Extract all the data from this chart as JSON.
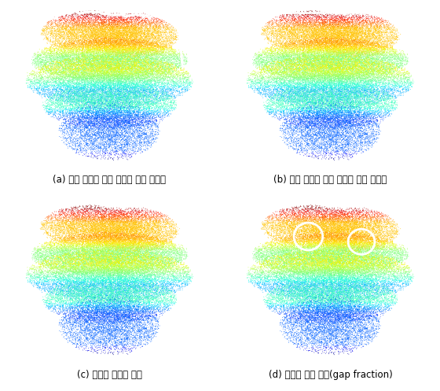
{
  "captions": [
    "(a) 식생 수고에 따른 캐노피 외부 이질성",
    "(b) 식생 수고에 따른 캐노피 내부 이질성",
    "(c) 평균적 캐노피 높이",
    "(d) 임관의 틈새 비율(gap fraction)"
  ],
  "bg_color": "#000000",
  "caption_color": "#000000",
  "caption_fontsize": 8.5,
  "figure_bg": "#ffffff",
  "seed": 42,
  "n_points": 60000,
  "colormap": "jet",
  "point_size": 0.4,
  "point_alpha": 0.9
}
